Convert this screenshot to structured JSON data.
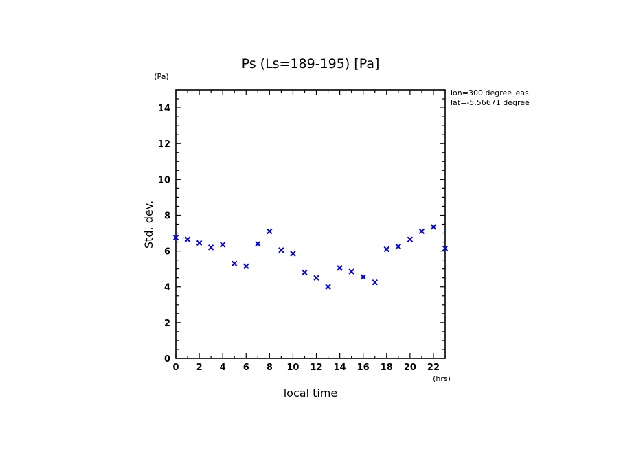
{
  "chart_data": {
    "type": "scatter",
    "title": "Ps (Ls=189-195) [Pa]",
    "xlabel": "local time",
    "ylabel": "Std. dev.",
    "x_unit": "(hrs)",
    "y_unit": "(Pa)",
    "xlim": [
      0,
      23
    ],
    "ylim": [
      0,
      15
    ],
    "x_ticks": [
      0,
      2,
      4,
      6,
      8,
      10,
      12,
      14,
      16,
      18,
      20,
      22
    ],
    "y_ticks": [
      0,
      2,
      4,
      6,
      8,
      10,
      12,
      14
    ],
    "annotations": [
      "lon=300 degree_eas",
      "lat=-5.56671 degree"
    ],
    "marker": "x",
    "marker_color": "#0000ee",
    "grid": false,
    "x": [
      0,
      1,
      2,
      3,
      4,
      5,
      6,
      7,
      8,
      9,
      10,
      11,
      12,
      13,
      14,
      15,
      16,
      17,
      18,
      19,
      20,
      21,
      22,
      23
    ],
    "y": [
      6.75,
      6.65,
      6.45,
      6.2,
      6.35,
      5.3,
      5.15,
      6.4,
      7.1,
      6.05,
      5.85,
      4.8,
      4.5,
      4.0,
      5.05,
      4.85,
      4.55,
      4.25,
      6.1,
      6.25,
      6.65,
      7.1,
      7.35,
      6.15
    ]
  }
}
